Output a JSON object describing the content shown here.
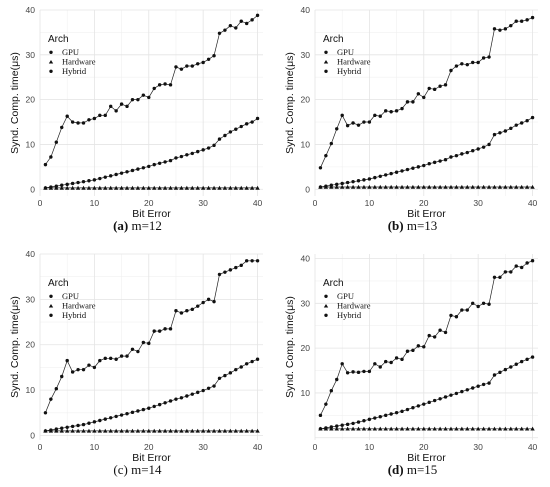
{
  "chart_data": [
    {
      "type": "line",
      "panel_letter": "(a)",
      "panel_label": "m=12",
      "xlabel": "Bit Error",
      "ylabel": "Synd. Comp. time(μs)",
      "xlim": [
        0,
        41
      ],
      "ylim": [
        -1.5,
        40
      ],
      "xticks": [
        0,
        10,
        20,
        30,
        40
      ],
      "yticks": [
        0,
        10,
        20,
        30,
        40
      ],
      "grid": true,
      "legend": {
        "title": "Arch",
        "position": "top-left"
      },
      "x": [
        1,
        2,
        3,
        4,
        5,
        6,
        7,
        8,
        9,
        10,
        11,
        12,
        13,
        14,
        15,
        16,
        17,
        18,
        19,
        20,
        21,
        22,
        23,
        24,
        25,
        26,
        27,
        28,
        29,
        30,
        31,
        32,
        33,
        34,
        35,
        36,
        37,
        38,
        39,
        40
      ],
      "series": [
        {
          "name": "GPU",
          "marker": "circle",
          "values": [
            5.5,
            7.2,
            10.5,
            13.8,
            16.3,
            15.0,
            14.8,
            14.8,
            15.5,
            15.8,
            16.5,
            16.5,
            18.5,
            17.5,
            19.0,
            18.5,
            20.0,
            20.0,
            21.0,
            20.5,
            22.5,
            23.3,
            23.5,
            23.3,
            27.3,
            26.8,
            27.5,
            27.5,
            28.0,
            28.3,
            29.0,
            29.8,
            34.8,
            35.5,
            36.5,
            36.0,
            37.5,
            37.0,
            37.8,
            38.8
          ]
        },
        {
          "name": "Hardware",
          "marker": "triangle",
          "values": [
            0.3,
            0.3,
            0.3,
            0.3,
            0.3,
            0.3,
            0.3,
            0.3,
            0.3,
            0.3,
            0.3,
            0.3,
            0.3,
            0.3,
            0.3,
            0.3,
            0.3,
            0.3,
            0.3,
            0.3,
            0.3,
            0.3,
            0.3,
            0.3,
            0.3,
            0.3,
            0.3,
            0.3,
            0.3,
            0.3,
            0.3,
            0.3,
            0.3,
            0.3,
            0.3,
            0.3,
            0.3,
            0.3,
            0.3,
            0.3
          ]
        },
        {
          "name": "Hybrid",
          "marker": "circle",
          "values": [
            0.3,
            0.5,
            0.7,
            0.9,
            1.1,
            1.3,
            1.5,
            1.7,
            1.9,
            2.1,
            2.4,
            2.7,
            3.0,
            3.3,
            3.6,
            3.9,
            4.2,
            4.5,
            4.8,
            5.1,
            5.5,
            5.8,
            6.1,
            6.4,
            7.0,
            7.3,
            7.7,
            8.0,
            8.4,
            8.8,
            9.2,
            9.8,
            11.2,
            12.0,
            12.8,
            13.4,
            14.0,
            14.6,
            15.0,
            15.8
          ]
        }
      ]
    },
    {
      "type": "line",
      "panel_letter": "(b)",
      "panel_label": "m=13",
      "xlabel": "Bit Error",
      "ylabel": "Synd. Comp. time(μs)",
      "xlim": [
        0,
        41
      ],
      "ylim": [
        -1.5,
        40
      ],
      "xticks": [
        0,
        10,
        20,
        30,
        40
      ],
      "yticks": [
        0,
        10,
        20,
        30,
        40
      ],
      "grid": true,
      "legend": {
        "title": "Arch",
        "position": "top-left"
      },
      "x": [
        1,
        2,
        3,
        4,
        5,
        6,
        7,
        8,
        9,
        10,
        11,
        12,
        13,
        14,
        15,
        16,
        17,
        18,
        19,
        20,
        21,
        22,
        23,
        24,
        25,
        26,
        27,
        28,
        29,
        30,
        31,
        32,
        33,
        34,
        35,
        36,
        37,
        38,
        39,
        40
      ],
      "series": [
        {
          "name": "GPU",
          "marker": "circle",
          "values": [
            4.8,
            7.5,
            10.2,
            13.5,
            16.5,
            14.2,
            14.8,
            14.3,
            15.0,
            15.0,
            16.5,
            16.3,
            17.5,
            17.3,
            17.5,
            18.0,
            19.5,
            19.5,
            21.3,
            20.5,
            22.5,
            22.3,
            23.0,
            23.3,
            26.5,
            27.5,
            28.0,
            27.8,
            28.3,
            28.3,
            29.3,
            29.5,
            35.8,
            35.5,
            35.8,
            36.5,
            37.5,
            37.5,
            37.8,
            38.3
          ]
        },
        {
          "name": "Hardware",
          "marker": "triangle",
          "values": [
            0.5,
            0.5,
            0.5,
            0.5,
            0.5,
            0.5,
            0.5,
            0.5,
            0.5,
            0.5,
            0.5,
            0.5,
            0.5,
            0.5,
            0.5,
            0.5,
            0.5,
            0.5,
            0.5,
            0.5,
            0.5,
            0.5,
            0.5,
            0.5,
            0.5,
            0.5,
            0.5,
            0.5,
            0.5,
            0.5,
            0.5,
            0.5,
            0.5,
            0.5,
            0.5,
            0.5,
            0.5,
            0.5,
            0.5,
            0.5
          ]
        },
        {
          "name": "Hybrid",
          "marker": "circle",
          "values": [
            0.5,
            0.7,
            0.9,
            1.1,
            1.3,
            1.5,
            1.7,
            1.9,
            2.1,
            2.3,
            2.6,
            2.9,
            3.2,
            3.5,
            3.8,
            4.1,
            4.4,
            4.7,
            5.0,
            5.3,
            5.7,
            6.0,
            6.3,
            6.6,
            7.2,
            7.5,
            7.9,
            8.2,
            8.6,
            9.0,
            9.4,
            10.0,
            12.2,
            12.6,
            13.0,
            13.6,
            14.3,
            14.8,
            15.3,
            16.0
          ]
        }
      ]
    },
    {
      "type": "line",
      "panel_letter": "(c)",
      "panel_label": "m=14",
      "xlabel": "Bit Error",
      "ylabel": "Synd. Comp. time(μs)",
      "xlim": [
        0,
        41
      ],
      "ylim": [
        -1.0,
        40
      ],
      "xticks": [
        0,
        10,
        20,
        30,
        40
      ],
      "yticks": [
        0,
        10,
        20,
        30,
        40
      ],
      "grid": true,
      "legend": {
        "title": "Arch",
        "position": "top-left"
      },
      "x": [
        1,
        2,
        3,
        4,
        5,
        6,
        7,
        8,
        9,
        10,
        11,
        12,
        13,
        14,
        15,
        16,
        17,
        18,
        19,
        20,
        21,
        22,
        23,
        24,
        25,
        26,
        27,
        28,
        29,
        30,
        31,
        32,
        33,
        34,
        35,
        36,
        37,
        38,
        39,
        40
      ],
      "series": [
        {
          "name": "GPU",
          "marker": "circle",
          "values": [
            5.0,
            8.0,
            10.3,
            13.0,
            16.5,
            14.0,
            14.5,
            14.5,
            15.5,
            15.0,
            16.5,
            17.0,
            17.0,
            16.8,
            17.5,
            17.5,
            19.0,
            18.5,
            20.5,
            20.3,
            23.0,
            23.0,
            23.5,
            23.5,
            27.5,
            27.0,
            27.5,
            27.8,
            28.5,
            29.3,
            30.0,
            29.5,
            35.5,
            36.0,
            36.5,
            37.0,
            37.5,
            38.5,
            38.5,
            38.5
          ]
        },
        {
          "name": "Hardware",
          "marker": "triangle",
          "values": [
            1.0,
            1.0,
            1.0,
            1.0,
            1.0,
            1.0,
            1.0,
            1.0,
            1.0,
            1.0,
            1.0,
            1.0,
            1.0,
            1.0,
            1.0,
            1.0,
            1.0,
            1.0,
            1.0,
            1.0,
            1.0,
            1.0,
            1.0,
            1.0,
            1.0,
            1.0,
            1.0,
            1.0,
            1.0,
            1.0,
            1.0,
            1.0,
            1.0,
            1.0,
            1.0,
            1.0,
            1.0,
            1.0,
            1.0,
            1.0
          ]
        },
        {
          "name": "Hybrid",
          "marker": "circle",
          "values": [
            1.0,
            1.2,
            1.4,
            1.6,
            1.8,
            2.0,
            2.2,
            2.4,
            2.7,
            3.0,
            3.3,
            3.6,
            3.9,
            4.2,
            4.5,
            4.8,
            5.1,
            5.4,
            5.7,
            6.0,
            6.4,
            6.8,
            7.2,
            7.6,
            8.0,
            8.3,
            8.7,
            9.1,
            9.5,
            9.9,
            10.4,
            10.9,
            12.6,
            13.2,
            13.8,
            14.5,
            15.1,
            15.8,
            16.3,
            16.8
          ]
        }
      ]
    },
    {
      "type": "line",
      "panel_letter": "(d)",
      "panel_label": "m=15",
      "xlabel": "Bit Error",
      "ylabel": "Synd. Comp. time(μs)",
      "xlim": [
        0,
        41
      ],
      "ylim": [
        -0.5,
        41
      ],
      "xticks": [
        0,
        10,
        20,
        30,
        40
      ],
      "yticks": [
        10,
        20,
        30,
        40
      ],
      "grid": true,
      "legend": {
        "title": "Arch",
        "position": "top-left"
      },
      "x": [
        1,
        2,
        3,
        4,
        5,
        6,
        7,
        8,
        9,
        10,
        11,
        12,
        13,
        14,
        15,
        16,
        17,
        18,
        19,
        20,
        21,
        22,
        23,
        24,
        25,
        26,
        27,
        28,
        29,
        30,
        31,
        32,
        33,
        34,
        35,
        36,
        37,
        38,
        39,
        40
      ],
      "series": [
        {
          "name": "GPU",
          "marker": "circle",
          "values": [
            5.0,
            7.5,
            10.5,
            13.0,
            16.5,
            14.5,
            14.7,
            14.6,
            14.8,
            14.8,
            16.5,
            15.8,
            17.0,
            16.8,
            17.8,
            17.5,
            19.3,
            19.5,
            20.5,
            20.3,
            22.8,
            22.5,
            24.0,
            23.5,
            27.3,
            27.0,
            28.5,
            28.5,
            30.0,
            29.3,
            30.0,
            29.8,
            35.8,
            35.8,
            37.0,
            37.0,
            38.3,
            38.0,
            39.0,
            39.5
          ]
        },
        {
          "name": "Hardware",
          "marker": "triangle",
          "values": [
            2.0,
            2.0,
            2.0,
            2.0,
            2.0,
            2.0,
            2.0,
            2.0,
            2.0,
            2.0,
            2.0,
            2.0,
            2.0,
            2.0,
            2.0,
            2.0,
            2.0,
            2.0,
            2.0,
            2.0,
            2.0,
            2.0,
            2.0,
            2.0,
            2.0,
            2.0,
            2.0,
            2.0,
            2.0,
            2.0,
            2.0,
            2.0,
            2.0,
            2.0,
            2.0,
            2.0,
            2.0,
            2.0,
            2.0,
            2.0
          ]
        },
        {
          "name": "Hybrid",
          "marker": "circle",
          "values": [
            2.0,
            2.2,
            2.4,
            2.6,
            2.8,
            3.0,
            3.2,
            3.5,
            3.8,
            4.1,
            4.4,
            4.7,
            5.0,
            5.3,
            5.6,
            5.9,
            6.3,
            6.7,
            7.1,
            7.5,
            7.9,
            8.3,
            8.7,
            9.1,
            9.5,
            9.9,
            10.3,
            10.7,
            11.1,
            11.5,
            11.9,
            12.2,
            14.0,
            14.6,
            15.2,
            15.8,
            16.4,
            17.0,
            17.5,
            18.0
          ]
        }
      ]
    }
  ]
}
